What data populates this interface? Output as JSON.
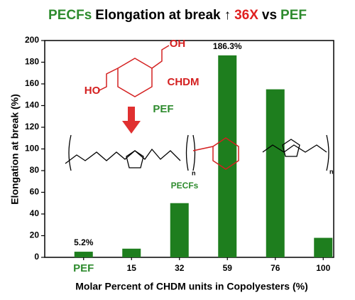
{
  "chart_data": {
    "type": "bar",
    "title": [
      {
        "text": "PECFs",
        "color": "#2e8b2e"
      },
      {
        "text": "Elongation at break",
        "color": "#000000"
      },
      {
        "text": "↑",
        "color": "#000000"
      },
      {
        "text": "36X",
        "color": "#e02020"
      },
      {
        "text": "vs",
        "color": "#000000"
      },
      {
        "text": "PEF",
        "color": "#2e8b2e"
      }
    ],
    "x_label": "Molar Percent of CHDM units in Copolyesters (%)",
    "y_label": "Elongation at break (%)",
    "categories": [
      "PEF",
      "15",
      "32",
      "59",
      "76",
      "100"
    ],
    "category_label_colors": [
      "#2e8b2e",
      "#000000",
      "#000000",
      "#000000",
      "#000000",
      "#000000"
    ],
    "values": [
      5.2,
      8,
      50,
      186.3,
      155,
      18
    ],
    "value_labels": [
      "5.2%",
      null,
      null,
      "186.3%",
      null,
      null
    ],
    "color": "#1e7e1e",
    "ylim": [
      0,
      200
    ],
    "yticks": [
      0,
      20,
      40,
      60,
      80,
      100,
      120,
      140,
      160,
      180,
      200
    ],
    "annotations": [
      "HO",
      "OH",
      "CHDM",
      "PEF",
      "PECFs",
      "n",
      "n"
    ]
  }
}
